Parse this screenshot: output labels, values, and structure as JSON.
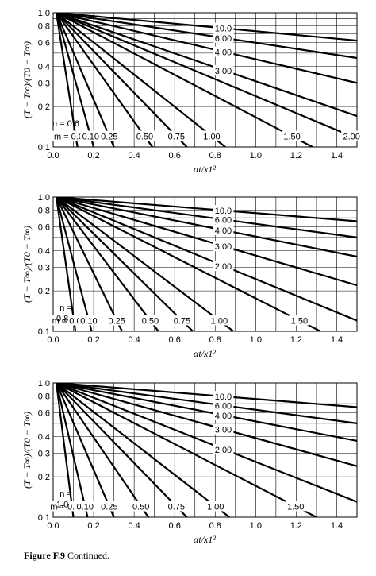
{
  "figure_caption": {
    "label": "Figure F.9",
    "text": "Continued."
  },
  "chart_data": [
    {
      "type": "line",
      "ylabel": "(T − T∞)/(T0 − T∞)",
      "xlabel": "αt/x1²",
      "x_ticks": [
        "0.0",
        "0.2",
        "0.4",
        "0.6",
        "0.8",
        "1.0",
        "1.2",
        "1.4"
      ],
      "y_ticks": [
        "0.1",
        "0.2",
        "0.3",
        "0.4",
        "0.6",
        "0.8",
        "1.0"
      ],
      "x_scale": "linear",
      "y_scale": "log",
      "xlim": [
        0,
        1.5
      ],
      "ylim": [
        0.1,
        1.0
      ],
      "n_label": "n = 0.6",
      "m_prefix": "m = ",
      "series": [
        {
          "name": "0.00",
          "x_at_0p1": 0.12
        },
        {
          "name": "0.10",
          "x_at_0p1": 0.2
        },
        {
          "name": "0.25",
          "x_at_0p1": 0.3
        },
        {
          "name": "0.50",
          "x_at_0p1": 0.49
        },
        {
          "name": "0.75",
          "x_at_0p1": 0.66
        },
        {
          "name": "1.00",
          "x_at_0p1": 0.85
        },
        {
          "name": "1.50",
          "x_at_0p1": 1.28
        },
        {
          "name": "2.00",
          "x_at_0p1": 1.6
        },
        {
          "name": "3.00",
          "y_at_1p5": 0.17
        },
        {
          "name": "4.00",
          "y_at_1p5": 0.3
        },
        {
          "name": "6.00",
          "y_at_1p5": 0.46
        },
        {
          "name": "10.0",
          "y_at_1p5": 0.62
        }
      ]
    },
    {
      "type": "line",
      "ylabel": "(T − T∞)/(T0 − T∞)",
      "xlabel": "αt/x1²",
      "x_ticks": [
        "0.0",
        "0.2",
        "0.4",
        "0.6",
        "0.8",
        "1.0",
        "1.2",
        "1.4"
      ],
      "y_ticks": [
        "0.1",
        "0.2",
        "0.3",
        "0.4",
        "0.6",
        "0.8",
        "1.0"
      ],
      "x_scale": "linear",
      "y_scale": "log",
      "xlim": [
        0,
        1.5
      ],
      "ylim": [
        0.1,
        1.0
      ],
      "n_label": "n =",
      "n_value": "0.8",
      "m_prefix": "m = ",
      "series": [
        {
          "name": "0.00",
          "x_at_0p1": 0.11
        },
        {
          "name": "0.10",
          "x_at_0p1": 0.19
        },
        {
          "name": "0.25",
          "x_at_0p1": 0.34
        },
        {
          "name": "0.50",
          "x_at_0p1": 0.52
        },
        {
          "name": "0.75",
          "x_at_0p1": 0.69
        },
        {
          "name": "1.00",
          "x_at_0p1": 0.89
        },
        {
          "name": "1.50",
          "x_at_0p1": 1.32
        },
        {
          "name": "2.00",
          "y_at_1p5": 0.12
        },
        {
          "name": "3.00",
          "y_at_1p5": 0.22
        },
        {
          "name": "4.00",
          "y_at_1p5": 0.36
        },
        {
          "name": "6.00",
          "y_at_1p5": 0.5
        },
        {
          "name": "10.0",
          "y_at_1p5": 0.66
        }
      ]
    },
    {
      "type": "line",
      "ylabel": "(T − T∞)/(T0 − T∞)",
      "xlabel": "αt/x1²",
      "x_ticks": [
        "0.0",
        "0.2",
        "0.4",
        "0.6",
        "0.8",
        "1.0",
        "1.2",
        "1.4"
      ],
      "y_ticks": [
        "0.1",
        "0.2",
        "0.3",
        "0.4",
        "0.6",
        "0.8",
        "1.0"
      ],
      "x_scale": "linear",
      "y_scale": "log",
      "xlim": [
        0,
        1.5
      ],
      "ylim": [
        0.1,
        1.0
      ],
      "n_label": "n =",
      "n_value": "1.0",
      "m_prefix": "m = ",
      "series": [
        {
          "name": "0.10",
          "x_at_0p1": 0.1
        },
        {
          "name": "0.10",
          "x_at_0p1": 0.17
        },
        {
          "name": "0.25",
          "x_at_0p1": 0.3
        },
        {
          "name": "0.50",
          "x_at_0p1": 0.47
        },
        {
          "name": "0.75",
          "x_at_0p1": 0.66
        },
        {
          "name": "1.00",
          "x_at_0p1": 0.87
        },
        {
          "name": "1.50",
          "x_at_0p1": 1.3
        },
        {
          "name": "2.00",
          "y_at_1p5": 0.13
        },
        {
          "name": "3.00",
          "y_at_1p5": 0.24
        },
        {
          "name": "4.00",
          "y_at_1p5": 0.37
        },
        {
          "name": "6.00",
          "y_at_1p5": 0.5
        },
        {
          "name": "10.0",
          "y_at_1p5": 0.66
        }
      ]
    }
  ]
}
